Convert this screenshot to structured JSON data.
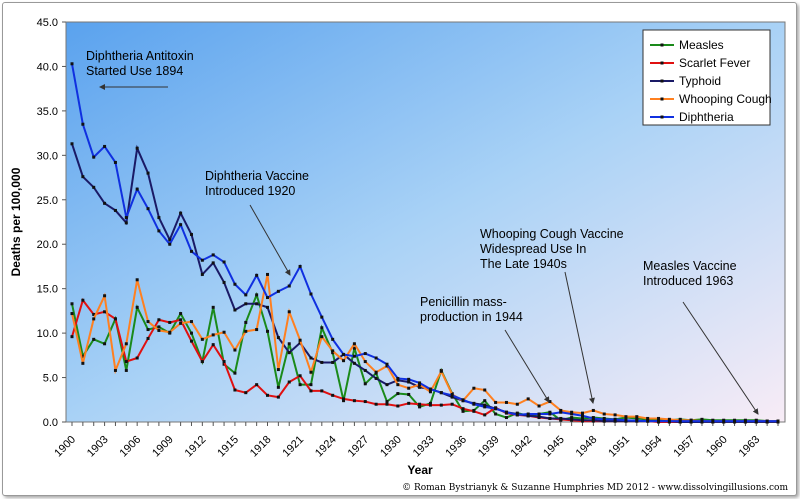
{
  "chart_data": {
    "type": "line",
    "xlabel": "Year",
    "ylabel": "Deaths per 100,000",
    "ylim": [
      0,
      45
    ],
    "xlim": [
      1900,
      1965
    ],
    "yticks": [
      "0.0",
      "5.0",
      "10.0",
      "15.0",
      "20.0",
      "25.0",
      "30.0",
      "35.0",
      "40.0",
      "45.0"
    ],
    "xticks": [
      "1900",
      "1903",
      "1906",
      "1909",
      "1912",
      "1915",
      "1918",
      "1921",
      "1924",
      "1927",
      "1930",
      "1933",
      "1936",
      "1939",
      "1942",
      "1945",
      "1948",
      "1951",
      "1954",
      "1957",
      "1960",
      "1963"
    ],
    "legend_position": "top-right",
    "x_start": 1900,
    "series": [
      {
        "name": "Measles",
        "color": "#1a8a1a",
        "values": [
          13.3,
          7.4,
          9.3,
          8.8,
          11.6,
          5.8,
          12.9,
          10.4,
          10.7,
          10.0,
          12.2,
          10.0,
          6.8,
          12.9,
          6.5,
          5.5,
          11.2,
          14.3,
          10.2,
          3.9,
          8.8,
          4.2,
          4.2,
          10.6,
          7.8,
          2.4,
          8.3,
          4.3,
          5.5,
          2.3,
          3.2,
          3.1,
          1.7,
          2.1,
          5.8,
          3.2,
          1.2,
          1.3,
          2.4,
          0.9,
          0.5,
          1.0,
          0.7,
          0.9,
          1.1,
          0.2,
          0.5,
          0.4,
          0.5,
          0.4,
          0.3,
          0.5,
          0.4,
          0.3,
          0.2,
          0.2,
          0.3,
          0.2,
          0.3,
          0.2,
          0.2,
          0.2,
          0.2,
          0.2,
          0.1,
          0.1
        ]
      },
      {
        "name": "Scarlet Fever",
        "color": "#e01010",
        "values": [
          9.6,
          13.7,
          12.1,
          12.4,
          11.6,
          6.8,
          7.2,
          9.4,
          11.5,
          11.2,
          11.5,
          9.1,
          6.8,
          8.7,
          6.8,
          3.6,
          3.3,
          4.2,
          3.0,
          2.8,
          4.5,
          5.2,
          3.5,
          3.5,
          3.0,
          2.6,
          2.4,
          2.3,
          2.0,
          2.0,
          1.8,
          2.1,
          2.0,
          1.9,
          1.9,
          2.0,
          1.5,
          1.2,
          0.8,
          1.6,
          1.0,
          0.8,
          0.7,
          0.5,
          0.4,
          0.3,
          0.2,
          0.1,
          0.1,
          0.1,
          0.1,
          0.1,
          0.1,
          0.1,
          0.0,
          0.0,
          0.0,
          0.0,
          0.0,
          0.0,
          0.0,
          0.0,
          0.0,
          0.0,
          0.0,
          0.0
        ]
      },
      {
        "name": "Typhoid",
        "color": "#1a1a66",
        "values": [
          31.3,
          27.6,
          26.4,
          24.6,
          23.8,
          22.4,
          30.8,
          28.0,
          23.0,
          20.5,
          23.5,
          21.1,
          16.6,
          17.9,
          15.7,
          12.6,
          13.3,
          13.3,
          12.9,
          9.5,
          7.8,
          8.9,
          7.2,
          6.7,
          6.7,
          7.6,
          6.6,
          5.8,
          4.9,
          4.2,
          4.7,
          4.5,
          3.9,
          3.7,
          3.3,
          2.8,
          2.4,
          2.1,
          1.9,
          1.5,
          1.1,
          0.9,
          0.7,
          0.6,
          0.4,
          0.4,
          0.3,
          0.2,
          0.2,
          0.1,
          0.1,
          0.1,
          0.1,
          0.1,
          0.1,
          0.1,
          0.0,
          0.0,
          0.0,
          0.0,
          0.0,
          0.0,
          0.0,
          0.0,
          0.0,
          0.0
        ]
      },
      {
        "name": "Whooping Cough",
        "color": "#ff8020",
        "values": [
          12.2,
          6.6,
          11.6,
          14.2,
          5.8,
          8.8,
          16.0,
          11.3,
          10.3,
          10.1,
          11.1,
          11.3,
          9.3,
          9.8,
          10.1,
          8.1,
          10.2,
          10.4,
          16.6,
          5.9,
          12.4,
          9.2,
          5.6,
          9.6,
          8.0,
          6.9,
          8.8,
          6.8,
          5.6,
          6.3,
          4.2,
          3.8,
          4.2,
          3.4,
          5.7,
          3.1,
          2.4,
          3.8,
          3.6,
          2.2,
          2.2,
          2.0,
          2.6,
          1.8,
          2.3,
          1.3,
          1.1,
          1.0,
          1.3,
          0.9,
          0.8,
          0.6,
          0.6,
          0.4,
          0.4,
          0.3,
          0.2,
          0.2,
          0.1,
          0.1,
          0.1,
          0.1,
          0.1,
          0.1,
          0.1,
          0.1
        ]
      },
      {
        "name": "Diphtheria",
        "color": "#1030e0",
        "values": [
          40.3,
          33.5,
          29.8,
          31.0,
          29.2,
          23.0,
          26.2,
          24.0,
          21.5,
          20.0,
          22.2,
          19.2,
          18.2,
          18.8,
          18.0,
          15.5,
          14.3,
          16.5,
          14.0,
          14.7,
          15.3,
          17.5,
          14.4,
          11.8,
          9.3,
          7.6,
          7.4,
          7.7,
          7.2,
          6.5,
          4.9,
          4.8,
          4.4,
          3.7,
          3.3,
          3.0,
          2.5,
          2.0,
          1.7,
          1.5,
          1.1,
          0.8,
          0.9,
          0.9,
          0.9,
          1.1,
          0.9,
          0.7,
          0.4,
          0.3,
          0.3,
          0.2,
          0.15,
          0.1,
          0.1,
          0.1,
          0.1,
          0.1,
          0.1,
          0.1,
          0.1,
          0.1,
          0.1,
          0.1,
          0.1,
          0.1
        ]
      }
    ],
    "annotations": [
      {
        "lines": [
          "Diphtheria Antitoxin",
          "Started Use 1894"
        ]
      },
      {
        "lines": [
          "Diphtheria Vaccine",
          "Introduced 1920"
        ]
      },
      {
        "lines": [
          "Whooping Cough Vaccine",
          "Widespread Use In",
          "The Late 1940s"
        ]
      },
      {
        "lines": [
          "Penicillin mass-",
          "production in 1944"
        ]
      },
      {
        "lines": [
          "Measles Vaccine",
          "Introduced 1963"
        ]
      }
    ],
    "credit": "© Roman Bystrianyk & Suzanne Humphries MD 2012 - www.dissolvingillusions.com"
  }
}
